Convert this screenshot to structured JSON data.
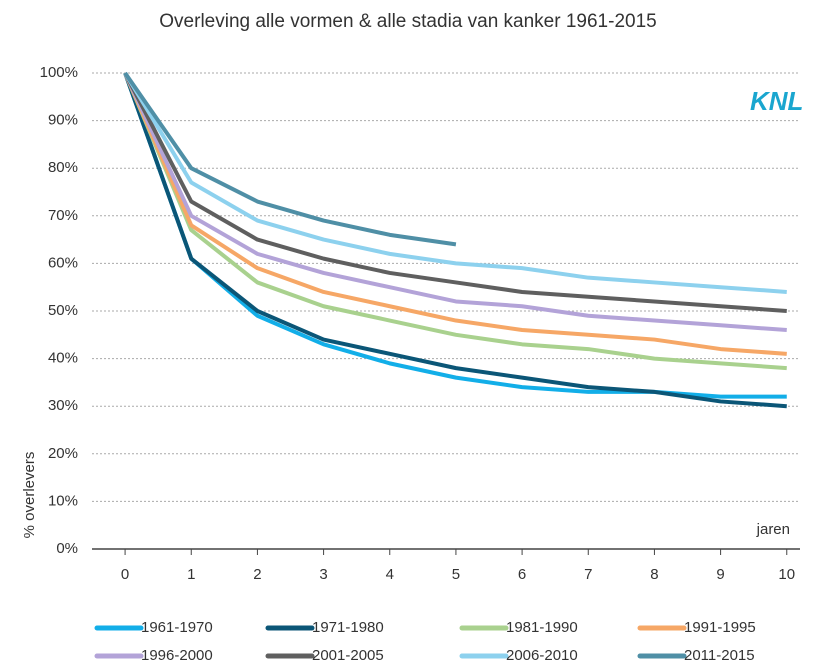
{
  "chart_data": {
    "type": "line",
    "title": "Overleving  alle vormen & alle stadia van kanker 1961-2015",
    "logo": "KNL",
    "x_label": "jaren",
    "y_label": "% overlevers",
    "x": [
      0,
      1,
      2,
      3,
      4,
      5,
      6,
      7,
      8,
      9,
      10
    ],
    "xlim": [
      -0.5,
      10.2
    ],
    "xticks": [
      0,
      1,
      2,
      3,
      4,
      5,
      6,
      7,
      8,
      9,
      10
    ],
    "ylim": [
      0,
      100
    ],
    "yticks": [
      {
        "value": 0,
        "label": "0%"
      },
      {
        "value": 10,
        "label": "10%"
      },
      {
        "value": 20,
        "label": "20%"
      },
      {
        "value": 30,
        "label": "30%"
      },
      {
        "value": 40,
        "label": "40%"
      },
      {
        "value": 50,
        "label": "50%"
      },
      {
        "value": 60,
        "label": "60%"
      },
      {
        "value": 70,
        "label": "70%"
      },
      {
        "value": 80,
        "label": "80%"
      },
      {
        "value": 90,
        "label": "90%"
      },
      {
        "value": 100,
        "label": "100%"
      }
    ],
    "grid": true,
    "legend": "bottom",
    "series": [
      {
        "name": "1961-1970",
        "color": "#12aee8",
        "values": [
          100,
          61,
          49,
          43,
          39,
          36,
          34,
          33,
          33,
          32,
          32
        ]
      },
      {
        "name": "1971-1980",
        "color": "#0b5677",
        "values": [
          100,
          61,
          50,
          44,
          41,
          38,
          36,
          34,
          33,
          31,
          30
        ]
      },
      {
        "name": "1981-1990",
        "color": "#a9d18e",
        "values": [
          100,
          67,
          56,
          51,
          48,
          45,
          43,
          42,
          40,
          39,
          38
        ]
      },
      {
        "name": "1991-1995",
        "color": "#f6a766",
        "values": [
          100,
          68,
          59,
          54,
          51,
          48,
          46,
          45,
          44,
          42,
          41
        ]
      },
      {
        "name": "1996-2000",
        "color": "#b3a3d8",
        "values": [
          100,
          70,
          62,
          58,
          55,
          52,
          51,
          49,
          48,
          47,
          46
        ]
      },
      {
        "name": "2001-2005",
        "color": "#5f5f5f",
        "values": [
          100,
          73,
          65,
          61,
          58,
          56,
          54,
          53,
          52,
          51,
          50
        ]
      },
      {
        "name": "2006-2010",
        "color": "#8dd1ee",
        "values": [
          100,
          77,
          69,
          65,
          62,
          60,
          59,
          57,
          56,
          55,
          54
        ]
      },
      {
        "name": "2011-2015",
        "color": "#4f8fa6",
        "values": [
          100,
          80,
          73,
          69,
          66,
          64,
          null,
          null,
          null,
          null,
          null
        ]
      }
    ]
  }
}
